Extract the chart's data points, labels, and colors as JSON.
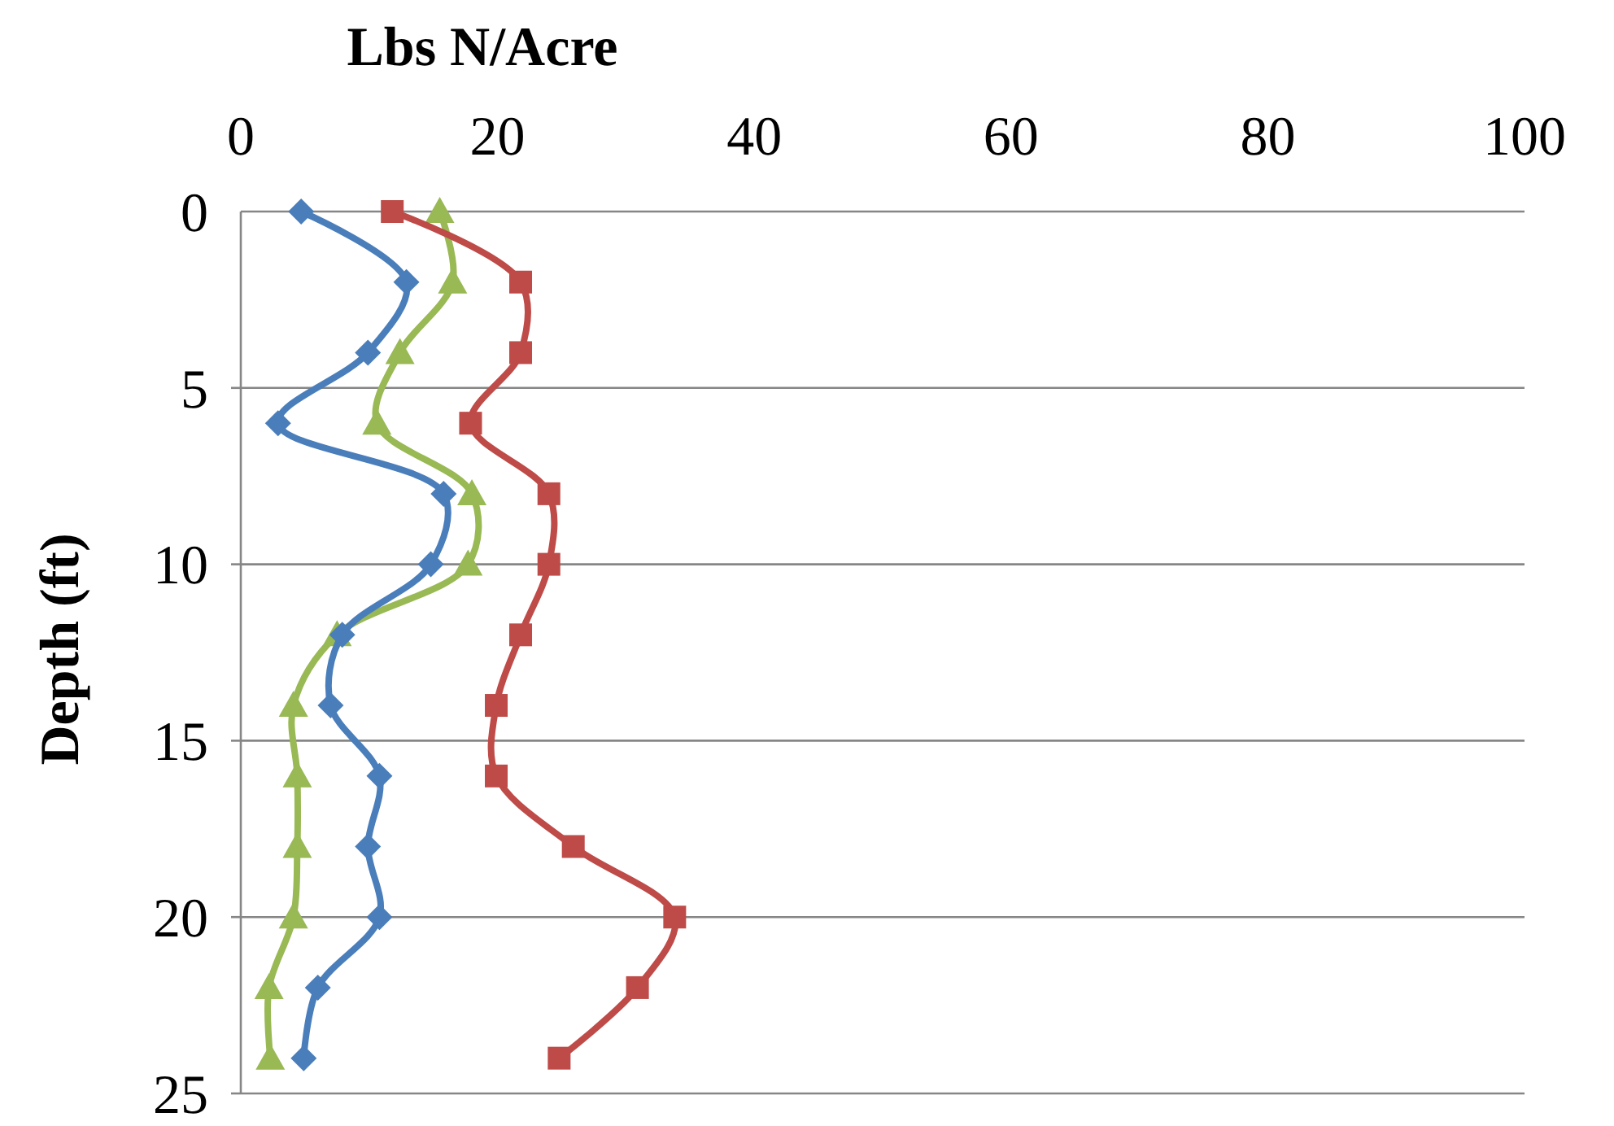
{
  "chart_data": {
    "type": "line",
    "orientation": "horizontal",
    "xlabel": "Lbs N/Acre",
    "ylabel": "Depth (ft)",
    "xlim": [
      0,
      100
    ],
    "xticks": [
      0,
      20,
      40,
      60,
      80,
      100
    ],
    "ylim": [
      25,
      0
    ],
    "yticks": [
      0,
      5,
      10,
      15,
      20,
      25
    ],
    "grid": "y",
    "line_style": "solid",
    "series": [
      {
        "color": "#4a7ebb",
        "marker": "diamond",
        "values": [
          4.7,
          12.9,
          9.9,
          2.9,
          15.8,
          14.8,
          7.9,
          7,
          10.8,
          9.9,
          10.8,
          6,
          4.9
        ],
        "x": [
          0,
          2,
          4,
          6,
          8,
          10,
          12,
          14,
          16,
          18,
          20,
          22,
          24
        ]
      },
      {
        "color": "#be4b48",
        "marker": "square",
        "values": [
          11.8,
          21.8,
          21.8,
          17.9,
          24,
          24,
          21.8,
          19.9,
          19.9,
          25.9,
          33.8,
          30.9,
          24.8
        ],
        "x": [
          0,
          2,
          4,
          6,
          8,
          10,
          12,
          14,
          16,
          18,
          20,
          22,
          24
        ]
      },
      {
        "color": "#98b954",
        "marker": "triangle",
        "values": [
          15.5,
          16.5,
          12.4,
          10.6,
          18,
          17.7,
          7.5,
          4.1,
          4.4,
          4.4,
          4.1,
          2.2,
          2.3
        ],
        "x": [
          0,
          2,
          4,
          6,
          8,
          10,
          12,
          14,
          16,
          18,
          20,
          22,
          24
        ]
      }
    ]
  }
}
